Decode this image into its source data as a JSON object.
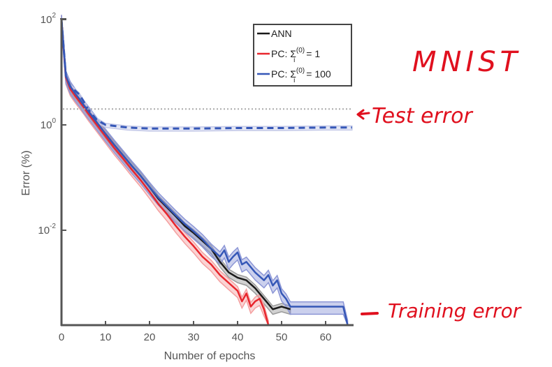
{
  "chart_data": {
    "type": "line",
    "title": "",
    "xlabel": "Number of epochs",
    "ylabel": "Error (%)",
    "xlim": [
      0,
      66
    ],
    "ylim": [
      0.00016,
      100
    ],
    "yscale": "log",
    "x_ticks": [
      0,
      10,
      20,
      30,
      40,
      50,
      60
    ],
    "x_tick_labels": [
      "0",
      "10",
      "20",
      "30",
      "40",
      "50",
      "60"
    ],
    "y_ticks": [
      100,
      1,
      0.01
    ],
    "y_tick_labels": [
      {
        "base": "10",
        "exp": "2"
      },
      {
        "base": "10",
        "exp": "0"
      },
      {
        "base": "10",
        "exp": "-2"
      }
    ],
    "grid": false,
    "legend": {
      "placement": "top-center",
      "entries": [
        {
          "label": "ANN",
          "color": "#1a1a1a"
        },
        {
          "label_prefix": "PC: Σ",
          "label_sub": "i",
          "label_sup": "(0)",
          "label_suffix": " = 1",
          "color": "#e8262d"
        },
        {
          "label_prefix": "PC: Σ",
          "label_sub": "i",
          "label_sup": "(0)",
          "label_suffix": " = 100",
          "color": "#3557b7"
        }
      ]
    },
    "reference_line": {
      "y": 2.0,
      "style": "dotted",
      "color": "#aaaaaa"
    },
    "series": [
      {
        "name": "ANN training",
        "color": "#1a1a1a",
        "band": "#9a9a9a",
        "x": [
          0,
          1,
          2,
          3,
          4,
          5,
          6,
          8,
          10,
          12,
          14,
          16,
          18,
          20,
          22,
          24,
          26,
          28,
          30,
          32,
          34,
          36,
          38,
          40,
          42,
          44,
          46,
          48,
          50,
          52
        ],
        "log10y": [
          2,
          0.93,
          0.72,
          0.6,
          0.5,
          0.38,
          0.27,
          0.05,
          -0.17,
          -0.38,
          -0.58,
          -0.78,
          -0.97,
          -1.18,
          -1.4,
          -1.57,
          -1.74,
          -1.92,
          -2.05,
          -2.2,
          -2.35,
          -2.6,
          -2.8,
          -2.9,
          -2.95,
          -3.1,
          -3.3,
          -3.5,
          -3.45,
          -3.5
        ],
        "band_halfwidth_log": 0.06
      },
      {
        "name": "PC Σ=1 training",
        "color": "#e8262d",
        "band": "#f4a0a0",
        "x": [
          0,
          1,
          2,
          3,
          4,
          5,
          6,
          8,
          10,
          12,
          14,
          16,
          18,
          20,
          22,
          24,
          26,
          28,
          30,
          32,
          34,
          36,
          38,
          40,
          41,
          42,
          43,
          44,
          45,
          46,
          47
        ],
        "log10y": [
          2,
          0.9,
          0.68,
          0.56,
          0.45,
          0.34,
          0.22,
          0.0,
          -0.22,
          -0.44,
          -0.64,
          -0.85,
          -1.05,
          -1.27,
          -1.5,
          -1.7,
          -1.92,
          -2.12,
          -2.3,
          -2.5,
          -2.65,
          -2.85,
          -3.0,
          -3.15,
          -3.35,
          -3.2,
          -3.45,
          -3.35,
          -3.3,
          -3.5,
          -3.8
        ],
        "band_halfwidth_log": 0.08
      },
      {
        "name": "PC Σ=100 training",
        "color": "#3557b7",
        "band": "#8c96d6",
        "x": [
          0,
          1,
          2,
          3,
          4,
          5,
          6,
          8,
          10,
          12,
          14,
          16,
          18,
          20,
          22,
          24,
          26,
          28,
          30,
          32,
          34,
          36,
          37,
          38,
          39,
          40,
          41,
          42,
          44,
          46,
          47,
          48,
          49,
          50,
          51,
          52,
          55,
          58,
          60,
          64,
          65
        ],
        "log10y": [
          2,
          0.93,
          0.73,
          0.61,
          0.5,
          0.38,
          0.27,
          0.05,
          -0.17,
          -0.38,
          -0.58,
          -0.78,
          -0.97,
          -1.18,
          -1.38,
          -1.55,
          -1.72,
          -1.88,
          -2.02,
          -2.17,
          -2.35,
          -2.5,
          -2.38,
          -2.6,
          -2.5,
          -2.42,
          -2.65,
          -2.6,
          -2.8,
          -2.95,
          -2.85,
          -3.05,
          -2.95,
          -3.2,
          -3.3,
          -3.45,
          -3.45,
          -3.45,
          -3.45,
          -3.45,
          -3.8
        ],
        "band_halfwidth_log": 0.09
      },
      {
        "name": "Test error (all)",
        "color": "#3557b7",
        "style": "dashed",
        "band": "#c4c9e8",
        "x": [
          0,
          1,
          2,
          3,
          4,
          5,
          6,
          8,
          10,
          15,
          20,
          30,
          40,
          50,
          60,
          66
        ],
        "log10y": [
          2,
          0.93,
          0.73,
          0.66,
          0.58,
          0.45,
          0.3,
          0.1,
          0.0,
          -0.05,
          -0.07,
          -0.07,
          -0.06,
          -0.06,
          -0.05,
          -0.05
        ],
        "band_halfwidth_log": 0.03
      }
    ]
  },
  "annotations": {
    "dataset": "MNIST",
    "test_label": "Test error",
    "train_label": "Training error"
  }
}
